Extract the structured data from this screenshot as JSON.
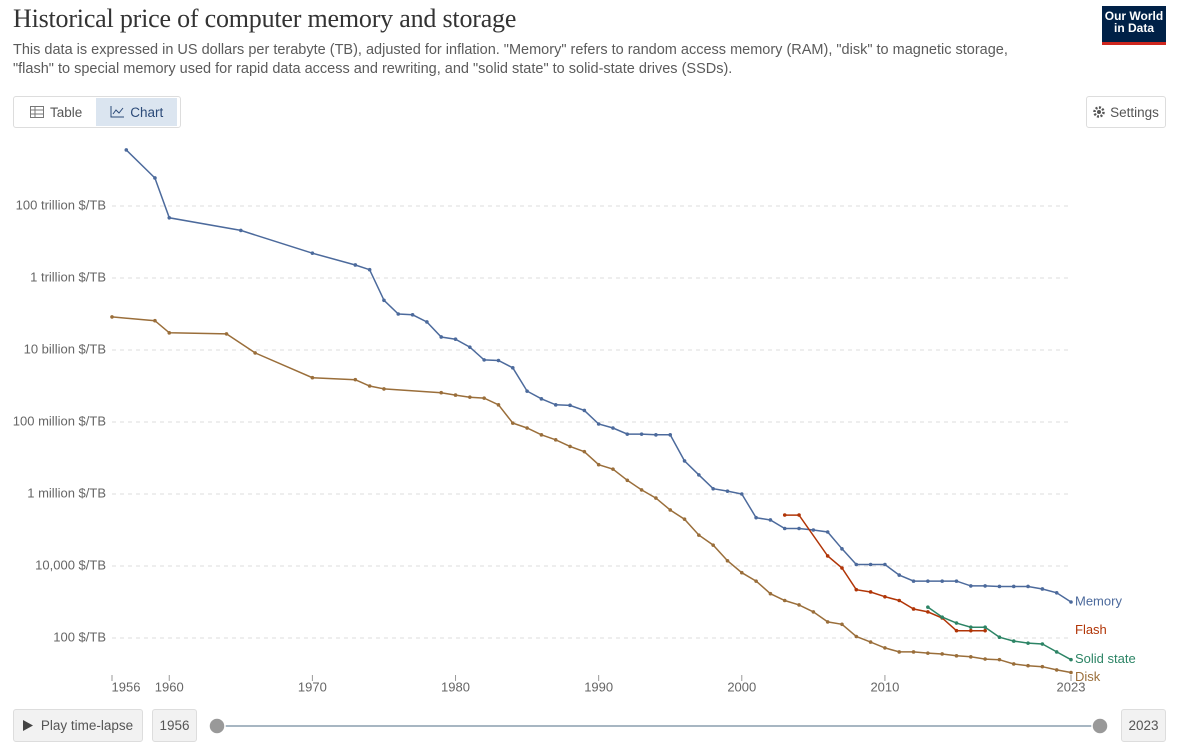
{
  "header": {
    "title": "Historical price of computer memory and storage",
    "subtitle": "This data is expressed in US dollars per terabyte (TB), adjusted for inflation. \"Memory\" refers to random access memory (RAM), \"disk\" to magnetic storage, \"flash\" to special memory used for rapid data access and rewriting, and \"solid state\" to solid-state drives (SSDs).",
    "logo": "Our World in Data"
  },
  "controls": {
    "table_tab": "Table",
    "chart_tab": "Chart",
    "settings": "Settings",
    "play": "Play time-lapse",
    "start": "1956",
    "end": "2023"
  },
  "chart_data": {
    "type": "line",
    "yscale": "log",
    "grid": true,
    "xlim": [
      1956,
      2023
    ],
    "xticks": [
      1956,
      1960,
      1970,
      1980,
      1990,
      2000,
      2010,
      2023
    ],
    "ylim": [
      10,
      1e+16
    ],
    "yticks": [
      {
        "value": 100,
        "label": "100 $/TB"
      },
      {
        "value": 10000,
        "label": "10,000 $/TB"
      },
      {
        "value": 1000000,
        "label": "1 million $/TB"
      },
      {
        "value": 100000000,
        "label": "100 million $/TB"
      },
      {
        "value": 10000000000,
        "label": "10 billion $/TB"
      },
      {
        "value": 1000000000000,
        "label": "1 trillion $/TB"
      },
      {
        "value": 100000000000000,
        "label": "100 trillion $/TB"
      }
    ],
    "series": [
      {
        "name": "Memory",
        "color": "#4c6a9c",
        "x": [
          1957,
          1959,
          1960,
          1965,
          1970,
          1973,
          1974,
          1975,
          1976,
          1977,
          1978,
          1979,
          1980,
          1981,
          1982,
          1983,
          1984,
          1985,
          1986,
          1987,
          1988,
          1989,
          1990,
          1991,
          1992,
          1993,
          1994,
          1995,
          1996,
          1997,
          1998,
          1999,
          2000,
          2001,
          2002,
          2003,
          2004,
          2005,
          2006,
          2007,
          2008,
          2009,
          2010,
          2011,
          2012,
          2013,
          2014,
          2015,
          2016,
          2017,
          2018,
          2019,
          2020,
          2021,
          2022,
          2023
        ],
        "values": [
          3600000000000000.0,
          600000000000000.0,
          47000000000000.0,
          21000000000000.0,
          4900000000000.0,
          2300000000000.0,
          1700000000000.0,
          240000000000.0,
          100000000000.0,
          95000000000.0,
          60000000000.0,
          23000000000.0,
          20000000000.0,
          12000000000.0,
          5300000000.0,
          5100000000.0,
          3200000000.0,
          720000000.0,
          440000000.0,
          300000000.0,
          290000000.0,
          210000000.0,
          88000000.0,
          68000000.0,
          46000000.0,
          46000000.0,
          44000000.0,
          44000000.0,
          8300000.0,
          3400000.0,
          1400000.0,
          1200000.0,
          1000000.0,
          220000.0,
          190000.0,
          110000.0,
          110000.0,
          100000.0,
          88000.0,
          30000.0,
          11000.0,
          11000.0,
          11000.0,
          5600.0,
          3800.0,
          3800.0,
          3800.0,
          3800.0,
          2800.0,
          2800.0,
          2700.0,
          2700.0,
          2700.0,
          2300.0,
          1800.0,
          1000.0
        ]
      },
      {
        "name": "Flash",
        "color": "#b13507",
        "x": [
          2003,
          2004,
          2006,
          2007,
          2008,
          2009,
          2010,
          2011,
          2012,
          2013,
          2014,
          2015,
          2016,
          2017
        ],
        "values": [
          260000.0,
          260000.0,
          19000.0,
          8800.0,
          2200.0,
          1900.0,
          1400.0,
          1100.0,
          640,
          530,
          360,
          160,
          160,
          160
        ]
      },
      {
        "name": "Solid state",
        "color": "#2c8465",
        "x": [
          2013,
          2014,
          2015,
          2016,
          2017,
          2018,
          2019,
          2020,
          2021,
          2022,
          2023
        ],
        "values": [
          720,
          380,
          260,
          200,
          200,
          105,
          82,
          72,
          68,
          41,
          25
        ]
      },
      {
        "name": "Disk",
        "color": "#9a6e3a",
        "x": [
          1956,
          1959,
          1960,
          1964,
          1966,
          1970,
          1973,
          1974,
          1975,
          1979,
          1980,
          1981,
          1982,
          1983,
          1984,
          1985,
          1986,
          1987,
          1988,
          1989,
          1990,
          1991,
          1992,
          1993,
          1994,
          1995,
          1996,
          1997,
          1998,
          1999,
          2000,
          2001,
          2002,
          2003,
          2004,
          2005,
          2006,
          2007,
          2008,
          2009,
          2010,
          2011,
          2012,
          2013,
          2014,
          2015,
          2016,
          2017,
          2018,
          2019,
          2020,
          2021,
          2022,
          2023
        ],
        "values": [
          83000000000.0,
          65000000000.0,
          30000000000.0,
          28000000000.0,
          8300000000.0,
          1700000000.0,
          1500000000.0,
          1000000000.0,
          830000000.0,
          650000000.0,
          560000000.0,
          490000000.0,
          460000000.0,
          300000000.0,
          93000000.0,
          68000000.0,
          44000000.0,
          32000000.0,
          21000000.0,
          15000000.0,
          6500000.0,
          4900000.0,
          2400000.0,
          1300000.0,
          770000.0,
          360000.0,
          200000.0,
          72000.0,
          38000.0,
          14000.0,
          6500.0,
          3800.0,
          1700.0,
          1100.0,
          830,
          530,
          280,
          240,
          110,
          77,
          53,
          41,
          41,
          38,
          36,
          32,
          30,
          26,
          25,
          19,
          17,
          16,
          13,
          11
        ]
      }
    ]
  }
}
